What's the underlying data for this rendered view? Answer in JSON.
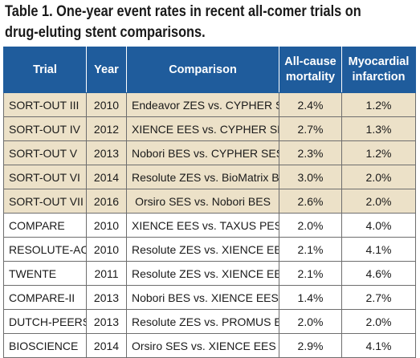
{
  "title": {
    "line1": "Table 1. One-year event rates in recent all-comer trials on",
    "line2": "drug-eluting stent comparisons."
  },
  "columns": {
    "trial": "Trial",
    "year": "Year",
    "comparison": "Comparison",
    "mortality_line1": "All-cause",
    "mortality_line2": "mortality",
    "mi_line1": "Myocardial",
    "mi_line2": "infarction"
  },
  "rows": [
    {
      "trial": "SORT-OUT III",
      "year": "2010",
      "comparison": "Endeavor ZES vs. CYPHER SES",
      "mortality": "2.4%",
      "mi": "1.2%",
      "shaded": true
    },
    {
      "trial": "SORT-OUT IV",
      "year": "2012",
      "comparison": "XIENCE EES vs. CYPHER SES",
      "mortality": "2.7%",
      "mi": "1.3%",
      "shaded": true
    },
    {
      "trial": "SORT-OUT V",
      "year": "2013",
      "comparison": "Nobori BES vs. CYPHER SES",
      "mortality": "2.3%",
      "mi": "1.2%",
      "shaded": true
    },
    {
      "trial": "SORT-OUT VI",
      "year": "2014",
      "comparison": "Resolute ZES vs. BioMatrix BES",
      "mortality": "3.0%",
      "mi": "2.0%",
      "shaded": true
    },
    {
      "trial": "SORT-OUT VII",
      "year": "2016",
      "comparison": "Orsiro SES vs. Nobori BES",
      "mortality": "2.6%",
      "mi": "2.0%",
      "shaded": true
    },
    {
      "trial": "COMPARE",
      "year": "2010",
      "comparison": "XIENCE EES vs. TAXUS PES",
      "mortality": "2.0%",
      "mi": "4.0%",
      "shaded": false
    },
    {
      "trial": "RESOLUTE-AC",
      "year": "2010",
      "comparison": "Resolute ZES vs. XIENCE EES",
      "mortality": "2.1%",
      "mi": "4.1%",
      "shaded": false
    },
    {
      "trial": "TWENTE",
      "year": "2011",
      "comparison": "Resolute ZES vs. XIENCE EES",
      "mortality": "2.1%",
      "mi": "4.6%",
      "shaded": false
    },
    {
      "trial": "COMPARE-II",
      "year": "2013",
      "comparison": "Nobori BES vs. XIENCE EES",
      "mortality": "1.4%",
      "mi": "2.7%",
      "shaded": false
    },
    {
      "trial": "DUTCH-PEERS",
      "year": "2013",
      "comparison": "Resolute ZES vs. PROMUS EES",
      "mortality": "2.0%",
      "mi": "2.0%",
      "shaded": false
    },
    {
      "trial": "BIOSCIENCE",
      "year": "2014",
      "comparison": "Orsiro SES vs. XIENCE EES",
      "mortality": "2.9%",
      "mi": "4.1%",
      "shaded": false
    }
  ],
  "colors": {
    "header_bg": "#1f5c9c",
    "shaded_row_bg": "#ece1c8",
    "grid_line": "#6e6e6e"
  }
}
